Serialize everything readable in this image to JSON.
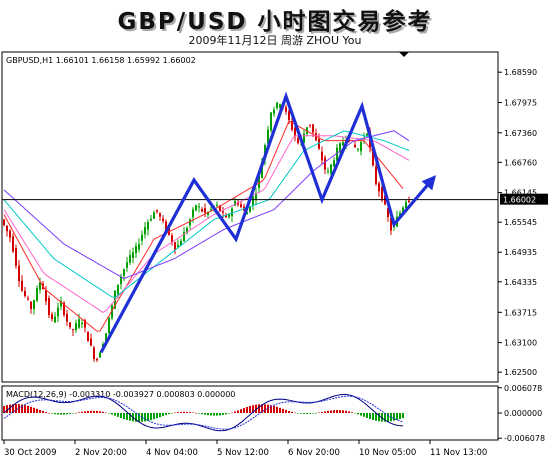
{
  "header": {
    "title": "GBP/USD 小时图交易参考",
    "subtitle": "2009年11月12日  周游 ZHOU You"
  },
  "chart_data": [
    {
      "type": "candlestick",
      "info_label": "GBPUSD,H1  1.66101 1.66158 1.65992 1.66002",
      "ylim": [
        1.623,
        1.69
      ],
      "y_ticks": [
        "1.68590",
        "1.67975",
        "1.67360",
        "1.66760",
        "1.66145",
        "1.65545",
        "1.64935",
        "1.64335",
        "1.63715",
        "1.63100",
        "1.62500"
      ],
      "current_price": "1.66002",
      "x_tick_labels": [
        "30 Oct 2009",
        "2 Nov 20:00",
        "4 Nov 04:00",
        "5 Nov 12:00",
        "6 Nov 20:00",
        "10 Nov 05:00",
        "11 Nov 13:00"
      ],
      "colors": {
        "bull": "#00a000",
        "bear": "#d40000",
        "price_line": "#000000",
        "annotation": "#1f2fd6"
      },
      "price_path": [
        [
          0,
          1.656
        ],
        [
          10,
          1.652
        ],
        [
          20,
          1.642
        ],
        [
          30,
          1.638
        ],
        [
          40,
          1.644
        ],
        [
          50,
          1.635
        ],
        [
          60,
          1.639
        ],
        [
          70,
          1.633
        ],
        [
          80,
          1.636
        ],
        [
          90,
          1.63
        ],
        [
          95,
          1.627
        ],
        [
          105,
          1.633
        ],
        [
          115,
          1.642
        ],
        [
          125,
          1.647
        ],
        [
          135,
          1.65
        ],
        [
          145,
          1.655
        ],
        [
          155,
          1.658
        ],
        [
          165,
          1.654
        ],
        [
          175,
          1.65
        ],
        [
          185,
          1.654
        ],
        [
          195,
          1.659
        ],
        [
          205,
          1.657
        ],
        [
          215,
          1.659
        ],
        [
          225,
          1.656
        ],
        [
          235,
          1.66
        ],
        [
          245,
          1.657
        ],
        [
          255,
          1.662
        ],
        [
          262,
          1.669
        ],
        [
          270,
          1.678
        ],
        [
          280,
          1.68
        ],
        [
          288,
          1.676
        ],
        [
          298,
          1.671
        ],
        [
          308,
          1.676
        ],
        [
          318,
          1.67
        ],
        [
          326,
          1.665
        ],
        [
          336,
          1.67
        ],
        [
          346,
          1.673
        ],
        [
          356,
          1.67
        ],
        [
          366,
          1.674
        ],
        [
          374,
          1.664
        ],
        [
          382,
          1.66
        ],
        [
          390,
          1.654
        ],
        [
          398,
          1.657
        ],
        [
          405,
          1.66
        ]
      ],
      "ma_series": [
        {
          "color": "#ff2a2a",
          "values": [
            [
              0,
              1.657
            ],
            [
              40,
              1.642
            ],
            [
              95,
              1.633
            ],
            [
              150,
              1.652
            ],
            [
              210,
              1.658
            ],
            [
              260,
              1.664
            ],
            [
              285,
              1.676
            ],
            [
              320,
              1.672
            ],
            [
              360,
              1.672
            ],
            [
              400,
              1.662
            ]
          ]
        },
        {
          "color": "#ff66cc",
          "values": [
            [
              0,
              1.658
            ],
            [
              40,
              1.645
            ],
            [
              100,
              1.637
            ],
            [
              150,
              1.649
            ],
            [
              210,
              1.657
            ],
            [
              260,
              1.662
            ],
            [
              290,
              1.673
            ],
            [
              330,
              1.673
            ],
            [
              370,
              1.672
            ],
            [
              405,
              1.668
            ]
          ]
        },
        {
          "color": "#00c8c8",
          "values": [
            [
              0,
              1.66
            ],
            [
              50,
              1.648
            ],
            [
              110,
              1.64
            ],
            [
              160,
              1.648
            ],
            [
              210,
              1.656
            ],
            [
              265,
              1.66
            ],
            [
              300,
              1.67
            ],
            [
              340,
              1.674
            ],
            [
              380,
              1.672
            ],
            [
              405,
              1.67
            ]
          ]
        },
        {
          "color": "#7a3cff",
          "values": [
            [
              0,
              1.662
            ],
            [
              60,
              1.651
            ],
            [
              120,
              1.644
            ],
            [
              170,
              1.648
            ],
            [
              220,
              1.654
            ],
            [
              270,
              1.658
            ],
            [
              310,
              1.666
            ],
            [
              350,
              1.672
            ],
            [
              390,
              1.674
            ],
            [
              405,
              1.672
            ]
          ]
        }
      ],
      "annotation_path": [
        [
          97,
          1.629
        ],
        [
          190,
          1.664
        ],
        [
          232,
          1.652
        ],
        [
          282,
          1.681
        ],
        [
          318,
          1.66
        ],
        [
          358,
          1.679
        ],
        [
          390,
          1.655
        ],
        [
          432,
          1.665
        ]
      ]
    },
    {
      "type": "histogram",
      "info_label": "MACD(12,26,9) -0.003310 -0.003927 0.000803 0.000000",
      "y_ticks": [
        "0.006078",
        "0.000000",
        "-0.006078"
      ],
      "ylim": [
        -0.0065,
        0.0065
      ],
      "colors": {
        "hist_up": "#00a000",
        "hist_down": "#d40000",
        "macd": "#000080",
        "signal": "#1f2fd6"
      }
    }
  ]
}
